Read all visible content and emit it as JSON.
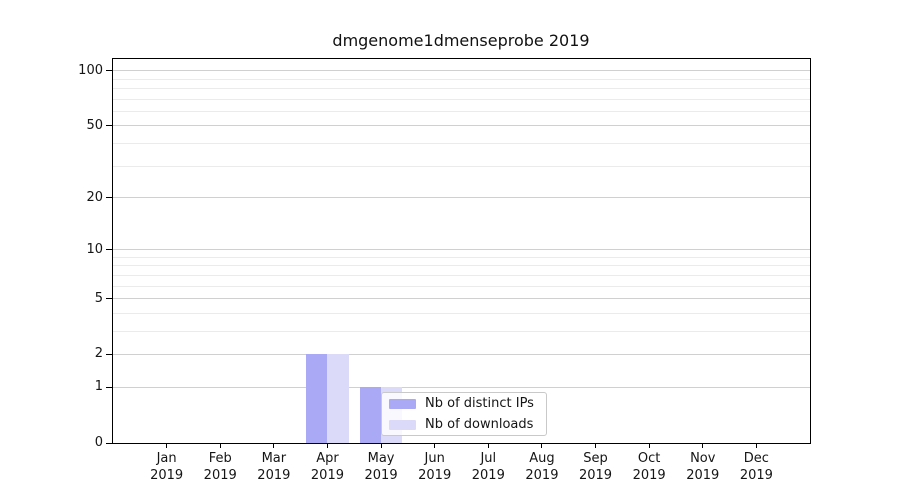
{
  "chart_data": {
    "type": "bar",
    "title": "dmgenome1dmenseprobe 2019",
    "categories": [
      "Jan",
      "Feb",
      "Mar",
      "Apr",
      "May",
      "Jun",
      "Jul",
      "Aug",
      "Sep",
      "Oct",
      "Nov",
      "Dec"
    ],
    "category_year": "2019",
    "series": [
      {
        "name": "Nb of distinct IPs",
        "color": "#a9a9f5",
        "values": [
          0,
          0,
          0,
          2,
          1,
          0,
          0,
          0,
          0,
          0,
          0,
          0
        ]
      },
      {
        "name": "Nb of downloads",
        "color": "#dbdbf9",
        "values": [
          0,
          0,
          0,
          2,
          1,
          0,
          0,
          0,
          0,
          0,
          0,
          0
        ]
      }
    ],
    "yscale": "log1p",
    "ylim": [
      0,
      116
    ],
    "yticks": [
      0,
      1,
      2,
      5,
      10,
      20,
      50,
      100
    ],
    "yticks_minor": [
      3,
      4,
      6,
      7,
      8,
      9,
      30,
      40,
      60,
      70,
      80,
      90
    ],
    "grid": "horizontal",
    "legend_position": "inside-lower-center"
  },
  "colors": {
    "major_grid": "#d0d0d0",
    "minor_grid": "#ebebeb",
    "spine": "#000000",
    "text": "#151515",
    "legend_border": "#c9c9c9"
  }
}
